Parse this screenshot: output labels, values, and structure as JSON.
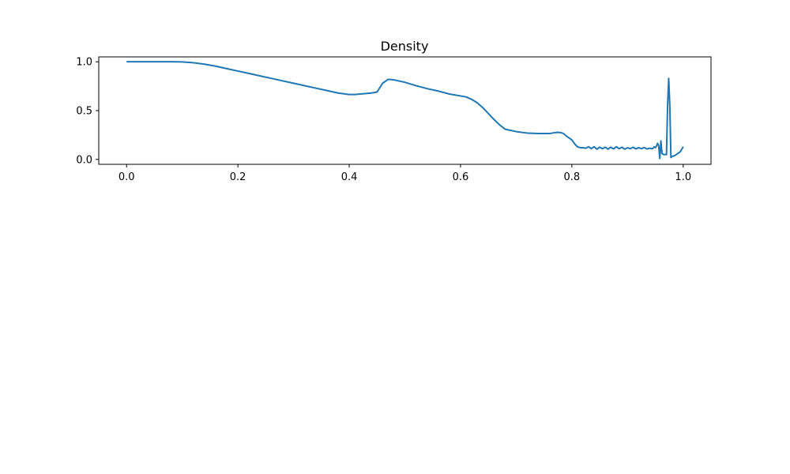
{
  "chart_data": {
    "type": "line",
    "title": "Density",
    "xlabel": "",
    "ylabel": "",
    "xlim": [
      -0.05,
      1.05
    ],
    "ylim": [
      -0.05,
      1.05
    ],
    "xticks": [
      0.0,
      0.2,
      0.4,
      0.6,
      0.8,
      1.0
    ],
    "xtick_labels": [
      "0.0",
      "0.2",
      "0.4",
      "0.6",
      "0.8",
      "1.0"
    ],
    "yticks": [
      0.0,
      0.5,
      1.0
    ],
    "ytick_labels": [
      "0.0",
      "0.5",
      "1.0"
    ],
    "grid": false,
    "line_color": "#1f77b4",
    "series": [
      {
        "x": [
          0.0,
          0.02,
          0.04,
          0.06,
          0.08,
          0.1,
          0.12,
          0.14,
          0.16,
          0.18,
          0.2,
          0.22,
          0.24,
          0.26,
          0.28,
          0.3,
          0.32,
          0.34,
          0.36,
          0.38,
          0.4,
          0.41,
          0.42,
          0.43,
          0.44,
          0.45,
          0.46,
          0.47,
          0.48,
          0.5,
          0.52,
          0.54,
          0.56,
          0.57,
          0.58,
          0.59,
          0.6,
          0.61,
          0.62,
          0.63,
          0.64,
          0.65,
          0.66,
          0.67,
          0.68,
          0.7,
          0.72,
          0.74,
          0.75,
          0.76,
          0.765,
          0.77,
          0.775,
          0.78,
          0.785,
          0.79,
          0.8,
          0.805,
          0.81,
          0.815,
          0.82,
          0.825,
          0.83,
          0.835,
          0.84,
          0.845,
          0.85,
          0.855,
          0.86,
          0.865,
          0.87,
          0.875,
          0.88,
          0.885,
          0.89,
          0.895,
          0.9,
          0.905,
          0.91,
          0.915,
          0.92,
          0.925,
          0.93,
          0.935,
          0.94,
          0.945,
          0.948,
          0.95,
          0.952,
          0.954,
          0.956,
          0.958,
          0.96,
          0.962,
          0.965,
          0.968,
          0.97,
          0.972,
          0.974,
          0.976,
          0.978,
          0.98,
          0.985,
          0.99,
          0.995,
          1.0
        ],
        "y": [
          1.0,
          1.0,
          1.0,
          1.0,
          1.0,
          0.998,
          0.99,
          0.975,
          0.955,
          0.93,
          0.905,
          0.88,
          0.855,
          0.83,
          0.805,
          0.78,
          0.755,
          0.73,
          0.705,
          0.68,
          0.665,
          0.665,
          0.67,
          0.675,
          0.68,
          0.69,
          0.78,
          0.82,
          0.815,
          0.79,
          0.755,
          0.725,
          0.7,
          0.685,
          0.67,
          0.66,
          0.65,
          0.64,
          0.615,
          0.58,
          0.53,
          0.47,
          0.41,
          0.355,
          0.31,
          0.285,
          0.27,
          0.265,
          0.265,
          0.265,
          0.27,
          0.275,
          0.278,
          0.275,
          0.265,
          0.24,
          0.2,
          0.16,
          0.13,
          0.12,
          0.12,
          0.115,
          0.13,
          0.11,
          0.13,
          0.105,
          0.125,
          0.11,
          0.125,
          0.105,
          0.125,
          0.108,
          0.13,
          0.11,
          0.125,
          0.105,
          0.12,
          0.11,
          0.125,
          0.108,
          0.12,
          0.11,
          0.122,
          0.108,
          0.115,
          0.11,
          0.13,
          0.12,
          0.135,
          0.165,
          0.14,
          0.01,
          0.19,
          0.06,
          0.05,
          0.05,
          0.05,
          0.55,
          0.83,
          0.55,
          0.02,
          0.03,
          0.04,
          0.06,
          0.08,
          0.13
        ]
      }
    ]
  }
}
